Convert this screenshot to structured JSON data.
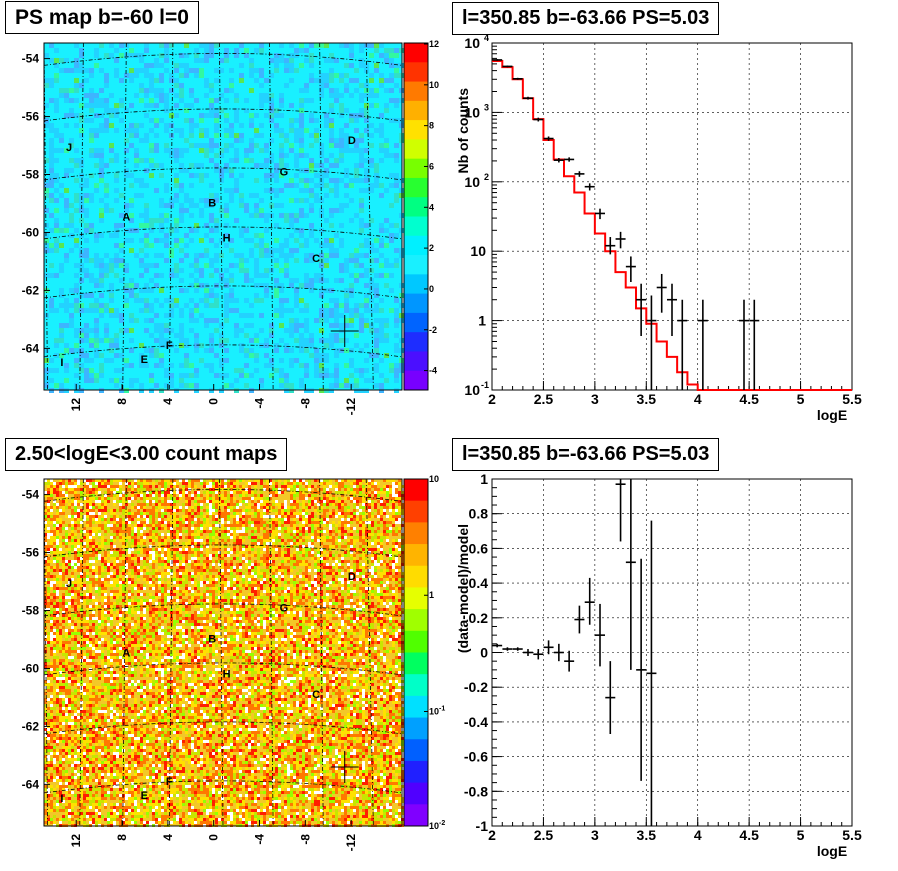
{
  "titles": {
    "map_top": "PS map b=-60 l=0",
    "map_bottom": "2.50<logE<3.00 count maps",
    "spec_top": "l=350.85 b=-63.66 PS=5.03",
    "spec_bottom": "l=350.85 b=-63.66 PS=5.03"
  },
  "colors": {
    "model_line": "#ff0000",
    "data_marker": "#000000",
    "map_top_bg": "#19f0ff",
    "map_bottom_bg": "#f3c828"
  },
  "chart_data": [
    {
      "type": "heatmap",
      "title": "PS map b=-60 l=0",
      "y_ticks": [
        "-54",
        "-56",
        "-58",
        "-60",
        "-62",
        "-64"
      ],
      "x_ticks": [
        "12",
        "8",
        "4",
        "0",
        "-4",
        "-8",
        "-12"
      ],
      "colorbar_ticks": [
        "12",
        "10",
        "8",
        "6",
        "4",
        "2",
        "0",
        "-2",
        "-4"
      ],
      "zlim": [
        -5,
        12
      ],
      "labels": [
        "J",
        "D",
        "G",
        "B",
        "A",
        "H",
        "C",
        "F",
        "E",
        "I"
      ],
      "cross": true
    },
    {
      "type": "heatmap",
      "title": "2.50<logE<3.00 count maps",
      "y_ticks": [
        "-54",
        "-56",
        "-58",
        "-60",
        "-62",
        "-64"
      ],
      "x_ticks": [
        "12",
        "8",
        "4",
        "0",
        "-4",
        "-8",
        "-12"
      ],
      "colorbar_ticks": [
        "10",
        "1",
        "10^-1",
        "10^-2"
      ],
      "zscale": "log",
      "labels": [
        "J",
        "D",
        "G",
        "B",
        "A",
        "H",
        "C",
        "F",
        "E",
        "I"
      ],
      "cross": true
    },
    {
      "type": "line",
      "title": "l=350.85 b=-63.66 PS=5.03",
      "xlabel": "logE",
      "ylabel": "Nb of counts",
      "yscale": "log",
      "xlim": [
        2,
        5.5
      ],
      "ylim": [
        0.1,
        10000
      ],
      "grid": true,
      "x_ticks": [
        "2",
        "2.5",
        "3",
        "3.5",
        "4",
        "4.5",
        "5",
        "5.5"
      ],
      "y_ticks": [
        {
          "mant": "10",
          "exp": "-1",
          "v": 0.1
        },
        {
          "mant": "1",
          "exp": "",
          "v": 1
        },
        {
          "mant": "10",
          "exp": "",
          "v": 10
        },
        {
          "mant": "10",
          "exp": "2",
          "v": 100
        },
        {
          "mant": "10",
          "exp": "3",
          "v": 1000
        },
        {
          "mant": "10",
          "exp": "4",
          "v": 10000
        }
      ],
      "model": {
        "edges": [
          2.0,
          2.1,
          2.2,
          2.3,
          2.4,
          2.5,
          2.6,
          2.7,
          2.8,
          2.9,
          3.0,
          3.1,
          3.2,
          3.3,
          3.4,
          3.5,
          3.6,
          3.7,
          3.8,
          3.9,
          4.0,
          5.5
        ],
        "values": [
          5500,
          4500,
          3000,
          1600,
          800,
          400,
          210,
          120,
          70,
          35,
          18,
          10,
          5,
          3,
          1.5,
          0.9,
          0.5,
          0.3,
          0.18,
          0.12,
          0.1
        ]
      },
      "data": [
        {
          "x": 2.05,
          "y": 5700,
          "lo": 5550,
          "hi": 5850
        },
        {
          "x": 2.15,
          "y": 4600,
          "lo": 4470,
          "hi": 4730
        },
        {
          "x": 2.25,
          "y": 3050,
          "lo": 2950,
          "hi": 3150
        },
        {
          "x": 2.35,
          "y": 1600,
          "lo": 1530,
          "hi": 1680
        },
        {
          "x": 2.45,
          "y": 790,
          "lo": 740,
          "hi": 840
        },
        {
          "x": 2.55,
          "y": 420,
          "lo": 390,
          "hi": 450
        },
        {
          "x": 2.65,
          "y": 205,
          "lo": 190,
          "hi": 220
        },
        {
          "x": 2.75,
          "y": 210,
          "lo": 195,
          "hi": 225
        },
        {
          "x": 2.85,
          "y": 130,
          "lo": 118,
          "hi": 142
        },
        {
          "x": 2.95,
          "y": 85,
          "lo": 75,
          "hi": 95
        },
        {
          "x": 3.05,
          "y": 35,
          "lo": 29,
          "hi": 41
        },
        {
          "x": 3.15,
          "y": 12,
          "lo": 9,
          "hi": 16
        },
        {
          "x": 3.25,
          "y": 15,
          "lo": 11,
          "hi": 19
        },
        {
          "x": 3.35,
          "y": 6,
          "lo": 3.6,
          "hi": 8.4
        },
        {
          "x": 3.45,
          "y": 2,
          "lo": 0.6,
          "hi": 3.4
        },
        {
          "x": 3.55,
          "y": 1,
          "lo": 0.1,
          "hi": 2.3
        },
        {
          "x": 3.65,
          "y": 3,
          "lo": 1.3,
          "hi": 4.7
        },
        {
          "x": 3.75,
          "y": 2,
          "lo": 0.6,
          "hi": 3.4
        },
        {
          "x": 3.85,
          "y": 1,
          "lo": 0.1,
          "hi": 2.0
        },
        {
          "x": 4.05,
          "y": 1,
          "lo": 0.1,
          "hi": 2.0
        },
        {
          "x": 4.45,
          "y": 1,
          "lo": 0.1,
          "hi": 2.0
        },
        {
          "x": 4.55,
          "y": 1,
          "lo": 0.1,
          "hi": 2.0
        }
      ]
    },
    {
      "type": "scatter",
      "title": "l=350.85 b=-63.66 PS=5.03",
      "xlabel": "logE",
      "ylabel": "(data-model)/model",
      "xlim": [
        2,
        5.5
      ],
      "ylim": [
        -1,
        1
      ],
      "grid": true,
      "x_ticks": [
        "2",
        "2.5",
        "3",
        "3.5",
        "4",
        "4.5",
        "5",
        "5.5"
      ],
      "y_ticks": [
        "-1",
        "-0.8",
        "-0.6",
        "-0.4",
        "-0.2",
        "0",
        "0.2",
        "0.4",
        "0.6",
        "0.8",
        "1"
      ],
      "data": [
        {
          "x": 2.05,
          "y": 0.04,
          "lo": 0.03,
          "hi": 0.05
        },
        {
          "x": 2.15,
          "y": 0.02,
          "lo": 0.01,
          "hi": 0.03
        },
        {
          "x": 2.25,
          "y": 0.02,
          "lo": 0.01,
          "hi": 0.03
        },
        {
          "x": 2.35,
          "y": 0.0,
          "lo": -0.02,
          "hi": 0.02
        },
        {
          "x": 2.45,
          "y": -0.01,
          "lo": -0.04,
          "hi": 0.02
        },
        {
          "x": 2.55,
          "y": 0.03,
          "lo": -0.01,
          "hi": 0.07
        },
        {
          "x": 2.65,
          "y": 0.0,
          "lo": -0.05,
          "hi": 0.05
        },
        {
          "x": 2.75,
          "y": -0.05,
          "lo": -0.11,
          "hi": 0.01
        },
        {
          "x": 2.85,
          "y": 0.19,
          "lo": 0.11,
          "hi": 0.27
        },
        {
          "x": 2.95,
          "y": 0.29,
          "lo": 0.16,
          "hi": 0.43
        },
        {
          "x": 3.05,
          "y": 0.1,
          "lo": -0.08,
          "hi": 0.28
        },
        {
          "x": 3.15,
          "y": -0.26,
          "lo": -0.47,
          "hi": -0.05
        },
        {
          "x": 3.25,
          "y": 0.97,
          "lo": 0.64,
          "hi": 1.3
        },
        {
          "x": 3.35,
          "y": 0.52,
          "lo": -0.1,
          "hi": 1.14
        },
        {
          "x": 3.45,
          "y": -0.1,
          "lo": -0.74,
          "hi": 0.54
        },
        {
          "x": 3.55,
          "y": -0.12,
          "lo": -1.0,
          "hi": 0.76
        }
      ]
    }
  ]
}
